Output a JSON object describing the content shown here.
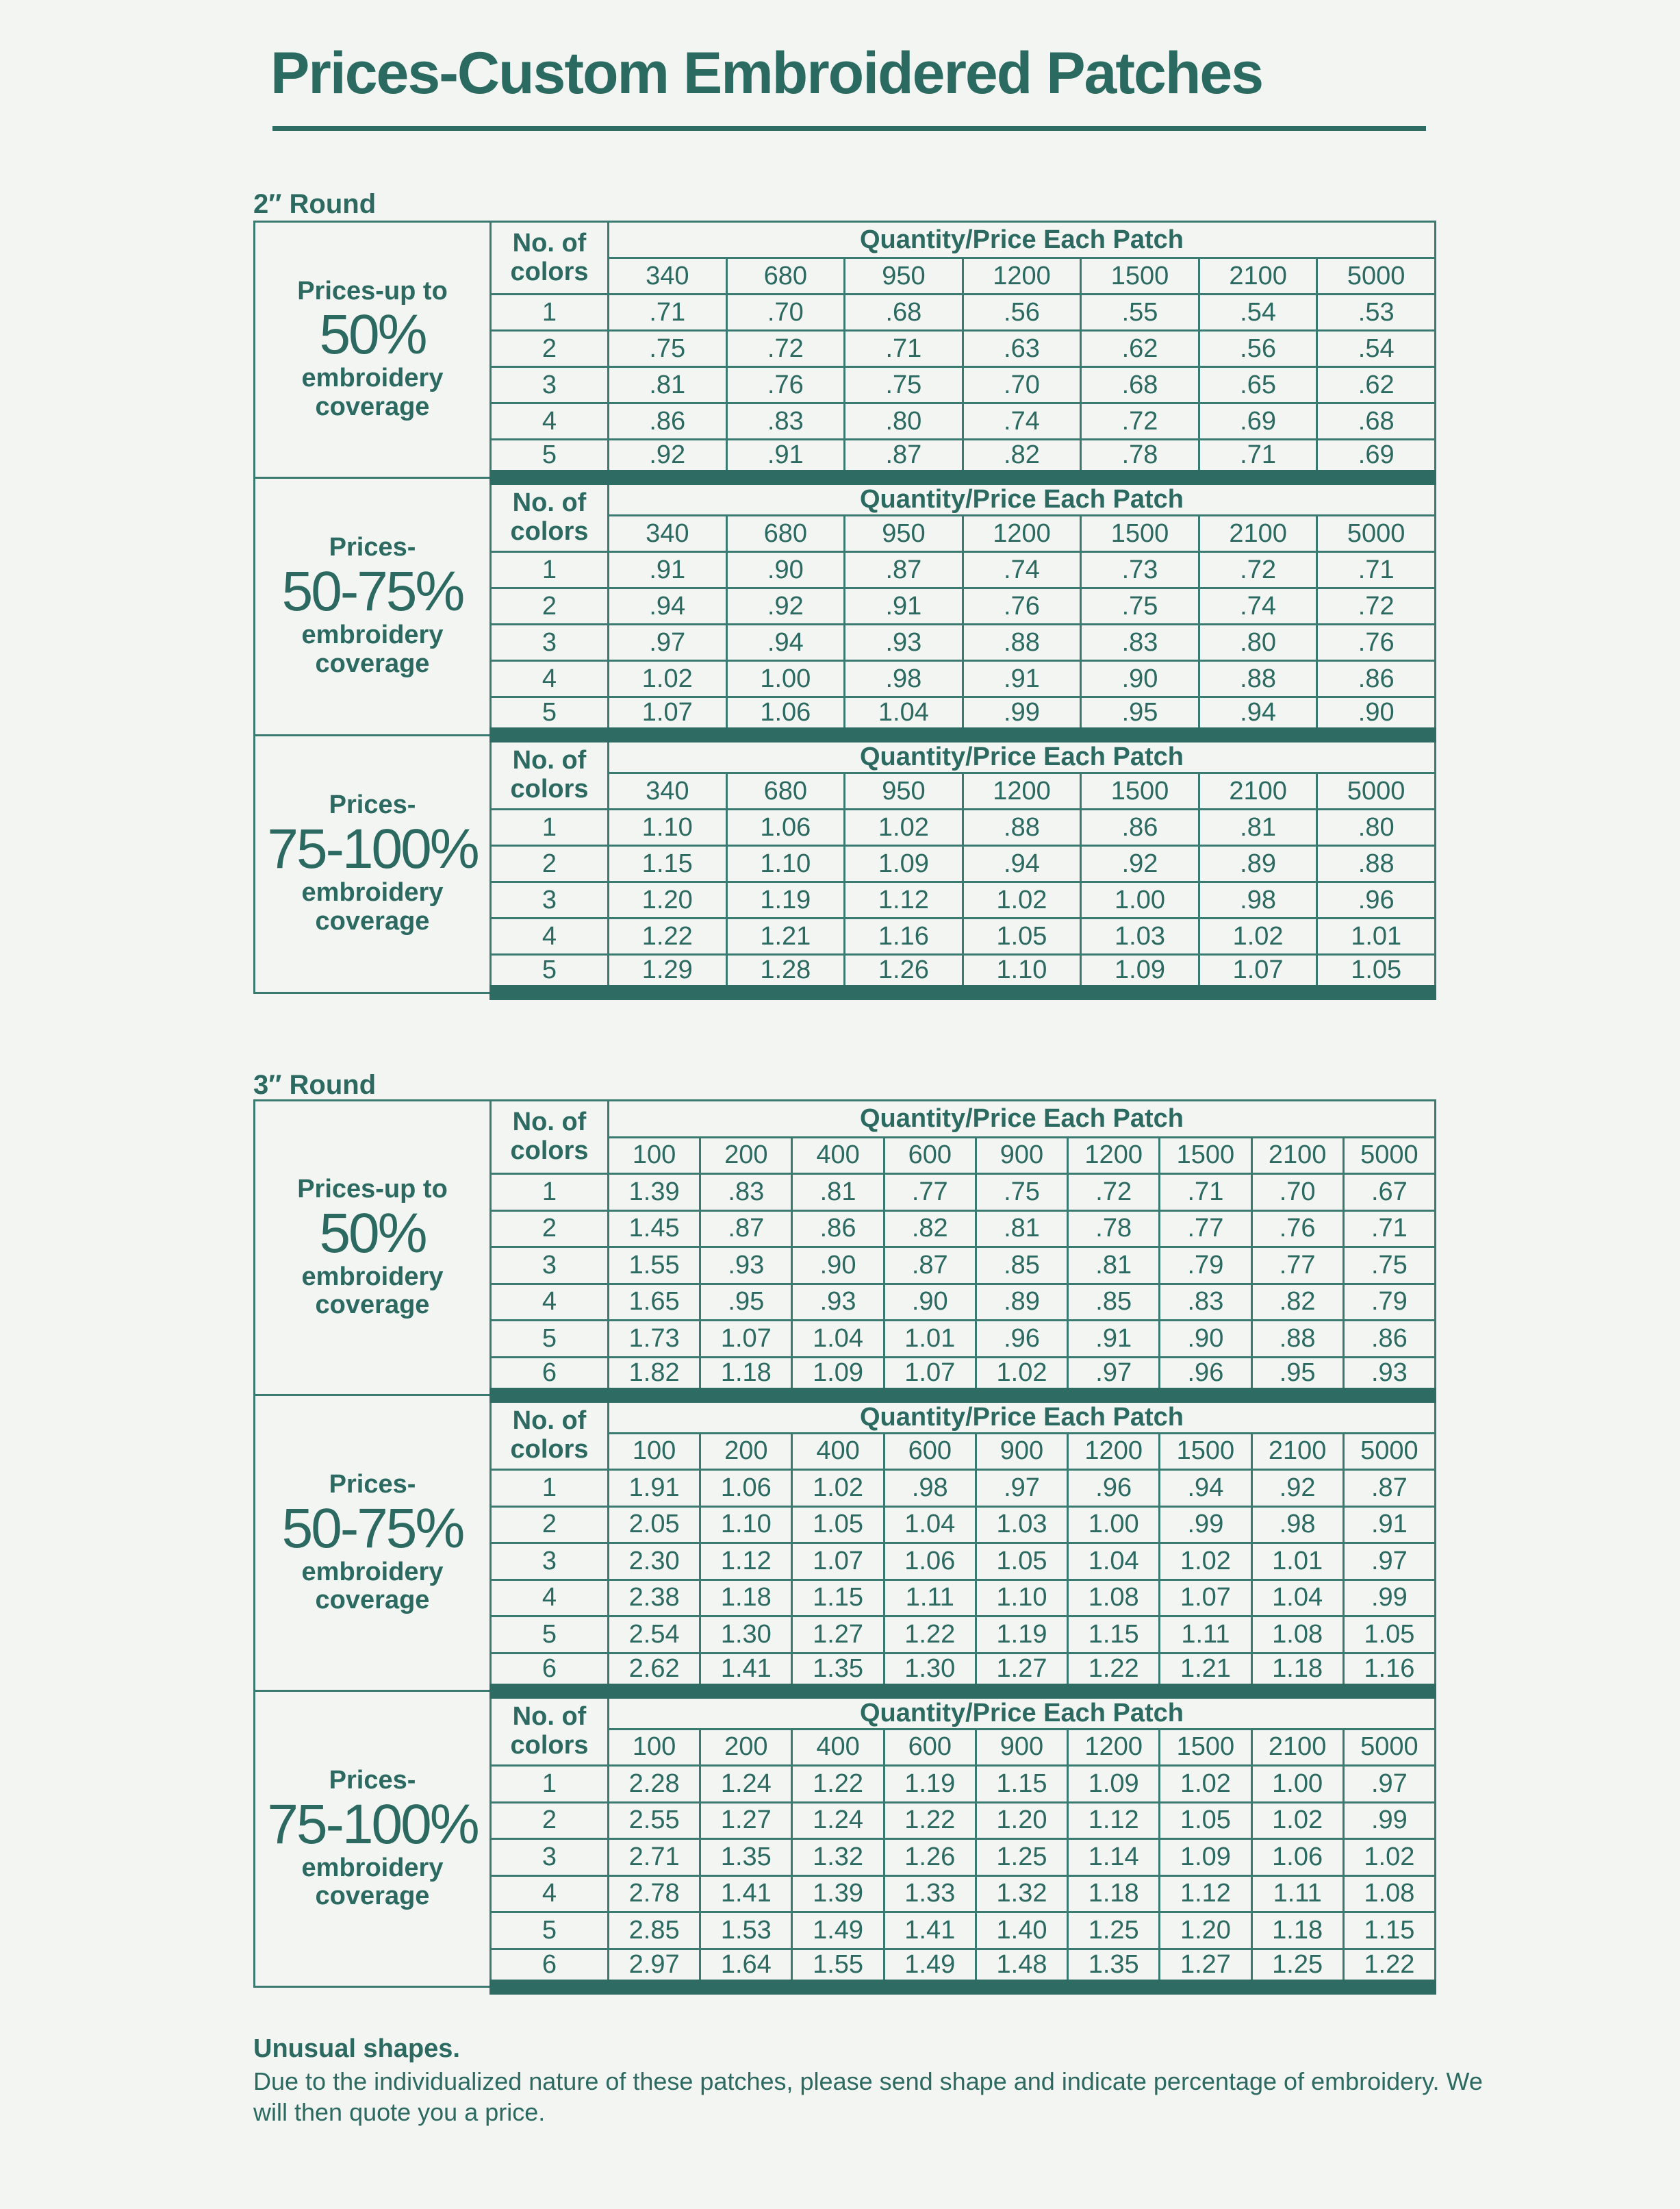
{
  "title": "Prices-Custom Embroidered Patches",
  "colors": {
    "accent": "#2e6b62",
    "background": "#f2f5f1"
  },
  "tables": [
    {
      "label": "2″ Round",
      "colors_header": [
        "No. of",
        "colors"
      ],
      "qty_header": "Quantity/Price Each Patch",
      "quantities": [
        "340",
        "680",
        "950",
        "1200",
        "1500",
        "2100",
        "5000"
      ],
      "sections": [
        {
          "coverage": [
            "Prices-up to",
            "50%",
            "embroidery",
            "coverage"
          ],
          "rows": [
            [
              "1",
              ".71",
              ".70",
              ".68",
              ".56",
              ".55",
              ".54",
              ".53"
            ],
            [
              "2",
              ".75",
              ".72",
              ".71",
              ".63",
              ".62",
              ".56",
              ".54"
            ],
            [
              "3",
              ".81",
              ".76",
              ".75",
              ".70",
              ".68",
              ".65",
              ".62"
            ],
            [
              "4",
              ".86",
              ".83",
              ".80",
              ".74",
              ".72",
              ".69",
              ".68"
            ],
            [
              "5",
              ".92",
              ".91",
              ".87",
              ".82",
              ".78",
              ".71",
              ".69"
            ]
          ]
        },
        {
          "coverage": [
            "Prices-",
            "50-75%",
            "embroidery",
            "coverage"
          ],
          "rows": [
            [
              "1",
              ".91",
              ".90",
              ".87",
              ".74",
              ".73",
              ".72",
              ".71"
            ],
            [
              "2",
              ".94",
              ".92",
              ".91",
              ".76",
              ".75",
              ".74",
              ".72"
            ],
            [
              "3",
              ".97",
              ".94",
              ".93",
              ".88",
              ".83",
              ".80",
              ".76"
            ],
            [
              "4",
              "1.02",
              "1.00",
              ".98",
              ".91",
              ".90",
              ".88",
              ".86"
            ],
            [
              "5",
              "1.07",
              "1.06",
              "1.04",
              ".99",
              ".95",
              ".94",
              ".90"
            ]
          ]
        },
        {
          "coverage": [
            "Prices-",
            "75-100%",
            "embroidery",
            "coverage"
          ],
          "rows": [
            [
              "1",
              "1.10",
              "1.06",
              "1.02",
              ".88",
              ".86",
              ".81",
              ".80"
            ],
            [
              "2",
              "1.15",
              "1.10",
              "1.09",
              ".94",
              ".92",
              ".89",
              ".88"
            ],
            [
              "3",
              "1.20",
              "1.19",
              "1.12",
              "1.02",
              "1.00",
              ".98",
              ".96"
            ],
            [
              "4",
              "1.22",
              "1.21",
              "1.16",
              "1.05",
              "1.03",
              "1.02",
              "1.01"
            ],
            [
              "5",
              "1.29",
              "1.28",
              "1.26",
              "1.10",
              "1.09",
              "1.07",
              "1.05"
            ]
          ]
        }
      ]
    },
    {
      "label": "3″ Round",
      "colors_header": [
        "No. of",
        "colors"
      ],
      "qty_header": "Quantity/Price Each Patch",
      "quantities": [
        "100",
        "200",
        "400",
        "600",
        "900",
        "1200",
        "1500",
        "2100",
        "5000"
      ],
      "sections": [
        {
          "coverage": [
            "Prices-up to",
            "50%",
            "embroidery",
            "coverage"
          ],
          "rows": [
            [
              "1",
              "1.39",
              ".83",
              ".81",
              ".77",
              ".75",
              ".72",
              ".71",
              ".70",
              ".67"
            ],
            [
              "2",
              "1.45",
              ".87",
              ".86",
              ".82",
              ".81",
              ".78",
              ".77",
              ".76",
              ".71"
            ],
            [
              "3",
              "1.55",
              ".93",
              ".90",
              ".87",
              ".85",
              ".81",
              ".79",
              ".77",
              ".75"
            ],
            [
              "4",
              "1.65",
              ".95",
              ".93",
              ".90",
              ".89",
              ".85",
              ".83",
              ".82",
              ".79"
            ],
            [
              "5",
              "1.73",
              "1.07",
              "1.04",
              "1.01",
              ".96",
              ".91",
              ".90",
              ".88",
              ".86"
            ],
            [
              "6",
              "1.82",
              "1.18",
              "1.09",
              "1.07",
              "1.02",
              ".97",
              ".96",
              ".95",
              ".93"
            ]
          ]
        },
        {
          "coverage": [
            "Prices-",
            "50-75%",
            "embroidery",
            "coverage"
          ],
          "rows": [
            [
              "1",
              "1.91",
              "1.06",
              "1.02",
              ".98",
              ".97",
              ".96",
              ".94",
              ".92",
              ".87"
            ],
            [
              "2",
              "2.05",
              "1.10",
              "1.05",
              "1.04",
              "1.03",
              "1.00",
              ".99",
              ".98",
              ".91"
            ],
            [
              "3",
              "2.30",
              "1.12",
              "1.07",
              "1.06",
              "1.05",
              "1.04",
              "1.02",
              "1.01",
              ".97"
            ],
            [
              "4",
              "2.38",
              "1.18",
              "1.15",
              "1.11",
              "1.10",
              "1.08",
              "1.07",
              "1.04",
              ".99"
            ],
            [
              "5",
              "2.54",
              "1.30",
              "1.27",
              "1.22",
              "1.19",
              "1.15",
              "1.11",
              "1.08",
              "1.05"
            ],
            [
              "6",
              "2.62",
              "1.41",
              "1.35",
              "1.30",
              "1.27",
              "1.22",
              "1.21",
              "1.18",
              "1.16"
            ]
          ]
        },
        {
          "coverage": [
            "Prices-",
            "75-100%",
            "embroidery",
            "coverage"
          ],
          "rows": [
            [
              "1",
              "2.28",
              "1.24",
              "1.22",
              "1.19",
              "1.15",
              "1.09",
              "1.02",
              "1.00",
              ".97"
            ],
            [
              "2",
              "2.55",
              "1.27",
              "1.24",
              "1.22",
              "1.20",
              "1.12",
              "1.05",
              "1.02",
              ".99"
            ],
            [
              "3",
              "2.71",
              "1.35",
              "1.32",
              "1.26",
              "1.25",
              "1.14",
              "1.09",
              "1.06",
              "1.02"
            ],
            [
              "4",
              "2.78",
              "1.41",
              "1.39",
              "1.33",
              "1.32",
              "1.18",
              "1.12",
              "1.11",
              "1.08"
            ],
            [
              "5",
              "2.85",
              "1.53",
              "1.49",
              "1.41",
              "1.40",
              "1.25",
              "1.20",
              "1.18",
              "1.15"
            ],
            [
              "6",
              "2.97",
              "1.64",
              "1.55",
              "1.49",
              "1.48",
              "1.35",
              "1.27",
              "1.25",
              "1.22"
            ]
          ]
        }
      ]
    }
  ],
  "note": {
    "heading": "Unusual shapes.",
    "body": "Due to the individualized nature of these patches, please send shape and indicate percentage of embroidery. We will then quote you a price."
  }
}
